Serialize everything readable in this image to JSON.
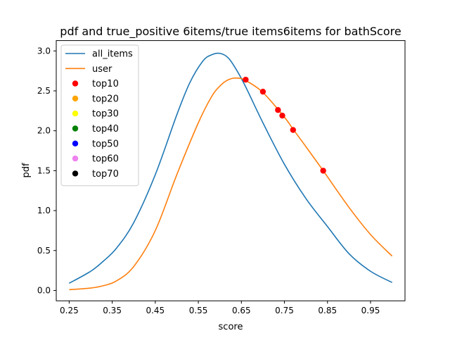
{
  "chart_data": {
    "type": "line",
    "title": "pdf and true_positive 6items/true items6items for bathScore",
    "xlabel": "score",
    "ylabel": "pdf",
    "xlim": [
      0.22,
      1.03
    ],
    "ylim": [
      -0.13,
      3.13
    ],
    "xticks": [
      0.25,
      0.35,
      0.45,
      0.55,
      0.65,
      0.75,
      0.85,
      0.95
    ],
    "xtick_labels": [
      "0.25",
      "0.35",
      "0.45",
      "0.55",
      "0.65",
      "0.75",
      "0.85",
      "0.95"
    ],
    "yticks": [
      0.0,
      0.5,
      1.0,
      1.5,
      2.0,
      2.5,
      3.0
    ],
    "ytick_labels": [
      "0.0",
      "0.5",
      "1.0",
      "1.5",
      "2.0",
      "2.5",
      "3.0"
    ],
    "grid": false,
    "legend_position": "top-left",
    "series": [
      {
        "name": "all_items",
        "color": "#1f77b4",
        "x": [
          0.25,
          0.3,
          0.33,
          0.36,
          0.4,
          0.45,
          0.5,
          0.53,
          0.56,
          0.58,
          0.6,
          0.62,
          0.64,
          0.66,
          0.7,
          0.75,
          0.8,
          0.85,
          0.9,
          0.95,
          1.0
        ],
        "y": [
          0.09,
          0.24,
          0.37,
          0.53,
          0.85,
          1.45,
          2.2,
          2.6,
          2.87,
          2.95,
          2.97,
          2.91,
          2.75,
          2.55,
          2.1,
          1.58,
          1.15,
          0.8,
          0.46,
          0.24,
          0.1
        ]
      },
      {
        "name": "user",
        "color": "#ff7f0e",
        "x": [
          0.25,
          0.3,
          0.33,
          0.36,
          0.4,
          0.45,
          0.5,
          0.55,
          0.58,
          0.6,
          0.62,
          0.64,
          0.66,
          0.7,
          0.75,
          0.77,
          0.8,
          0.84,
          0.9,
          0.95,
          1.0
        ],
        "y": [
          0.01,
          0.03,
          0.06,
          0.12,
          0.3,
          0.75,
          1.45,
          2.1,
          2.42,
          2.56,
          2.64,
          2.66,
          2.63,
          2.48,
          2.17,
          2.02,
          1.8,
          1.5,
          1.04,
          0.7,
          0.43
        ]
      }
    ],
    "scatter_series": [
      {
        "name": "top10",
        "color": "#ff0000",
        "x": [
          0.66,
          0.7,
          0.735,
          0.745,
          0.77,
          0.84
        ],
        "y": [
          2.64,
          2.49,
          2.26,
          2.19,
          2.01,
          1.5
        ]
      },
      {
        "name": "top20",
        "color": "#ffa500",
        "x": [],
        "y": []
      },
      {
        "name": "top30",
        "color": "#ffff00",
        "x": [],
        "y": []
      },
      {
        "name": "top40",
        "color": "#008000",
        "x": [],
        "y": []
      },
      {
        "name": "top50",
        "color": "#0000ff",
        "x": [],
        "y": []
      },
      {
        "name": "top60",
        "color": "#ee82ee",
        "x": [],
        "y": []
      },
      {
        "name": "top70",
        "color": "#000000",
        "x": [],
        "y": []
      }
    ]
  }
}
